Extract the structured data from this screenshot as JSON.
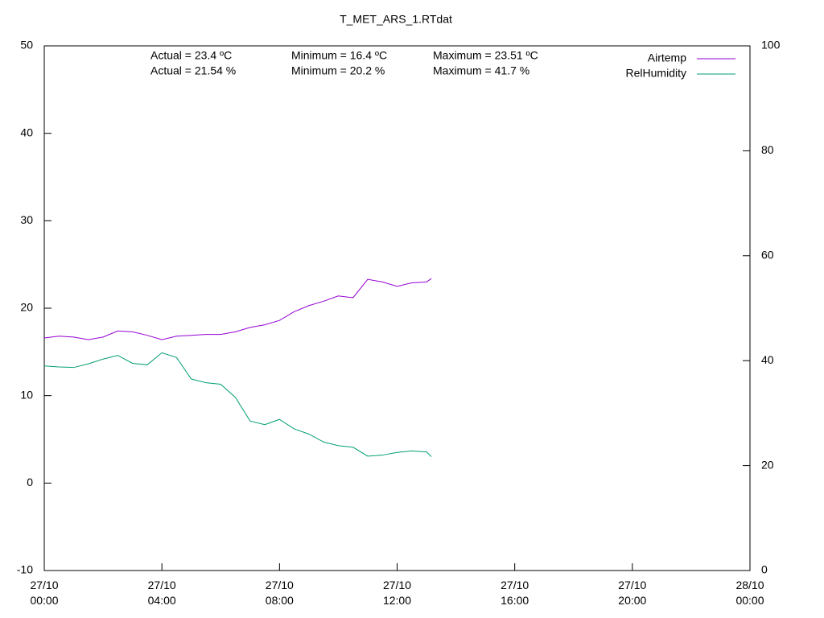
{
  "chart_data": {
    "type": "line",
    "title": "T_MET_ARS_1.RTdat",
    "annotations": [
      "Actual = 23.4 ºC",
      "Minimum = 16.4 ºC",
      "Maximum = 23.51 ºC",
      "Actual = 21.54 %",
      "Minimum = 20.2 %",
      "Maximum = 41.7 %"
    ],
    "x": [
      "27/10 00:00",
      "27/10 00:30",
      "27/10 01:00",
      "27/10 01:30",
      "27/10 02:00",
      "27/10 02:30",
      "27/10 03:00",
      "27/10 03:30",
      "27/10 04:00",
      "27/10 04:30",
      "27/10 05:00",
      "27/10 05:30",
      "27/10 06:00",
      "27/10 06:30",
      "27/10 07:00",
      "27/10 07:30",
      "27/10 08:00",
      "27/10 08:30",
      "27/10 09:00",
      "27/10 09:30",
      "27/10 10:00",
      "27/10 10:30",
      "27/10 11:00",
      "27/10 11:30",
      "27/10 12:00",
      "27/10 12:30",
      "27/10 13:00",
      "27/10 13:10"
    ],
    "series": [
      {
        "name": "Airtemp",
        "color": "#9400d3",
        "values": [
          16.6,
          16.8,
          16.7,
          16.4,
          16.7,
          17.4,
          17.3,
          16.9,
          16.4,
          16.8,
          16.9,
          17.0,
          17.0,
          17.3,
          17.8,
          18.1,
          18.6,
          19.6,
          20.3,
          20.8,
          21.4,
          21.2,
          23.3,
          23.0,
          22.5,
          22.9,
          23.0,
          23.4
        ]
      },
      {
        "name": "RelHumidity",
        "color": "#009e73",
        "axis": "y2",
        "values": [
          39.0,
          38.8,
          38.7,
          39.4,
          40.3,
          41.0,
          39.5,
          39.2,
          41.5,
          40.6,
          36.5,
          35.8,
          35.5,
          33.0,
          28.5,
          27.8,
          28.8,
          27.0,
          26.0,
          24.5,
          23.8,
          23.5,
          21.8,
          22.0,
          22.5,
          22.8,
          22.6,
          21.7
        ]
      }
    ],
    "xlim": [
      "27/10 00:00",
      "28/10 00:00"
    ],
    "xticks": [
      "27/10 00:00",
      "27/10 04:00",
      "27/10 08:00",
      "27/10 12:00",
      "27/10 16:00",
      "27/10 20:00",
      "28/10 00:00"
    ],
    "ylim": [
      -10,
      50
    ],
    "yticks": [
      -10,
      0,
      10,
      20,
      30,
      40,
      50
    ],
    "y2lim": [
      0,
      100
    ],
    "y2ticks": [
      0,
      20,
      40,
      60,
      80,
      100
    ],
    "legend": "upper right",
    "grid": false
  }
}
